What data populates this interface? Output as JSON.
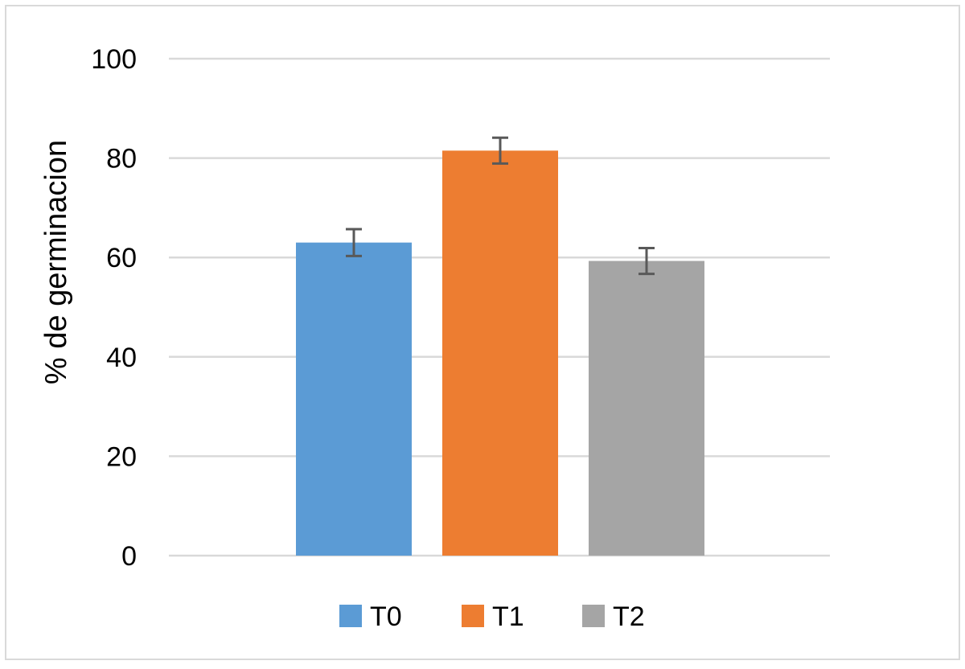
{
  "chart_data": {
    "type": "bar",
    "title": "",
    "xlabel": "",
    "ylabel": "% de germinacion",
    "ylim": [
      0,
      100
    ],
    "yticks": [
      0,
      20,
      40,
      60,
      80,
      100
    ],
    "grid": true,
    "legend_position": "bottom",
    "series": [
      {
        "name": "T0",
        "value": 63,
        "error": 2.7,
        "color": "#5B9BD5"
      },
      {
        "name": "T1",
        "value": 81.5,
        "error": 2.6,
        "color": "#ED7D31"
      },
      {
        "name": "T2",
        "value": 59.3,
        "error": 2.6,
        "color": "#A5A5A5"
      }
    ]
  }
}
